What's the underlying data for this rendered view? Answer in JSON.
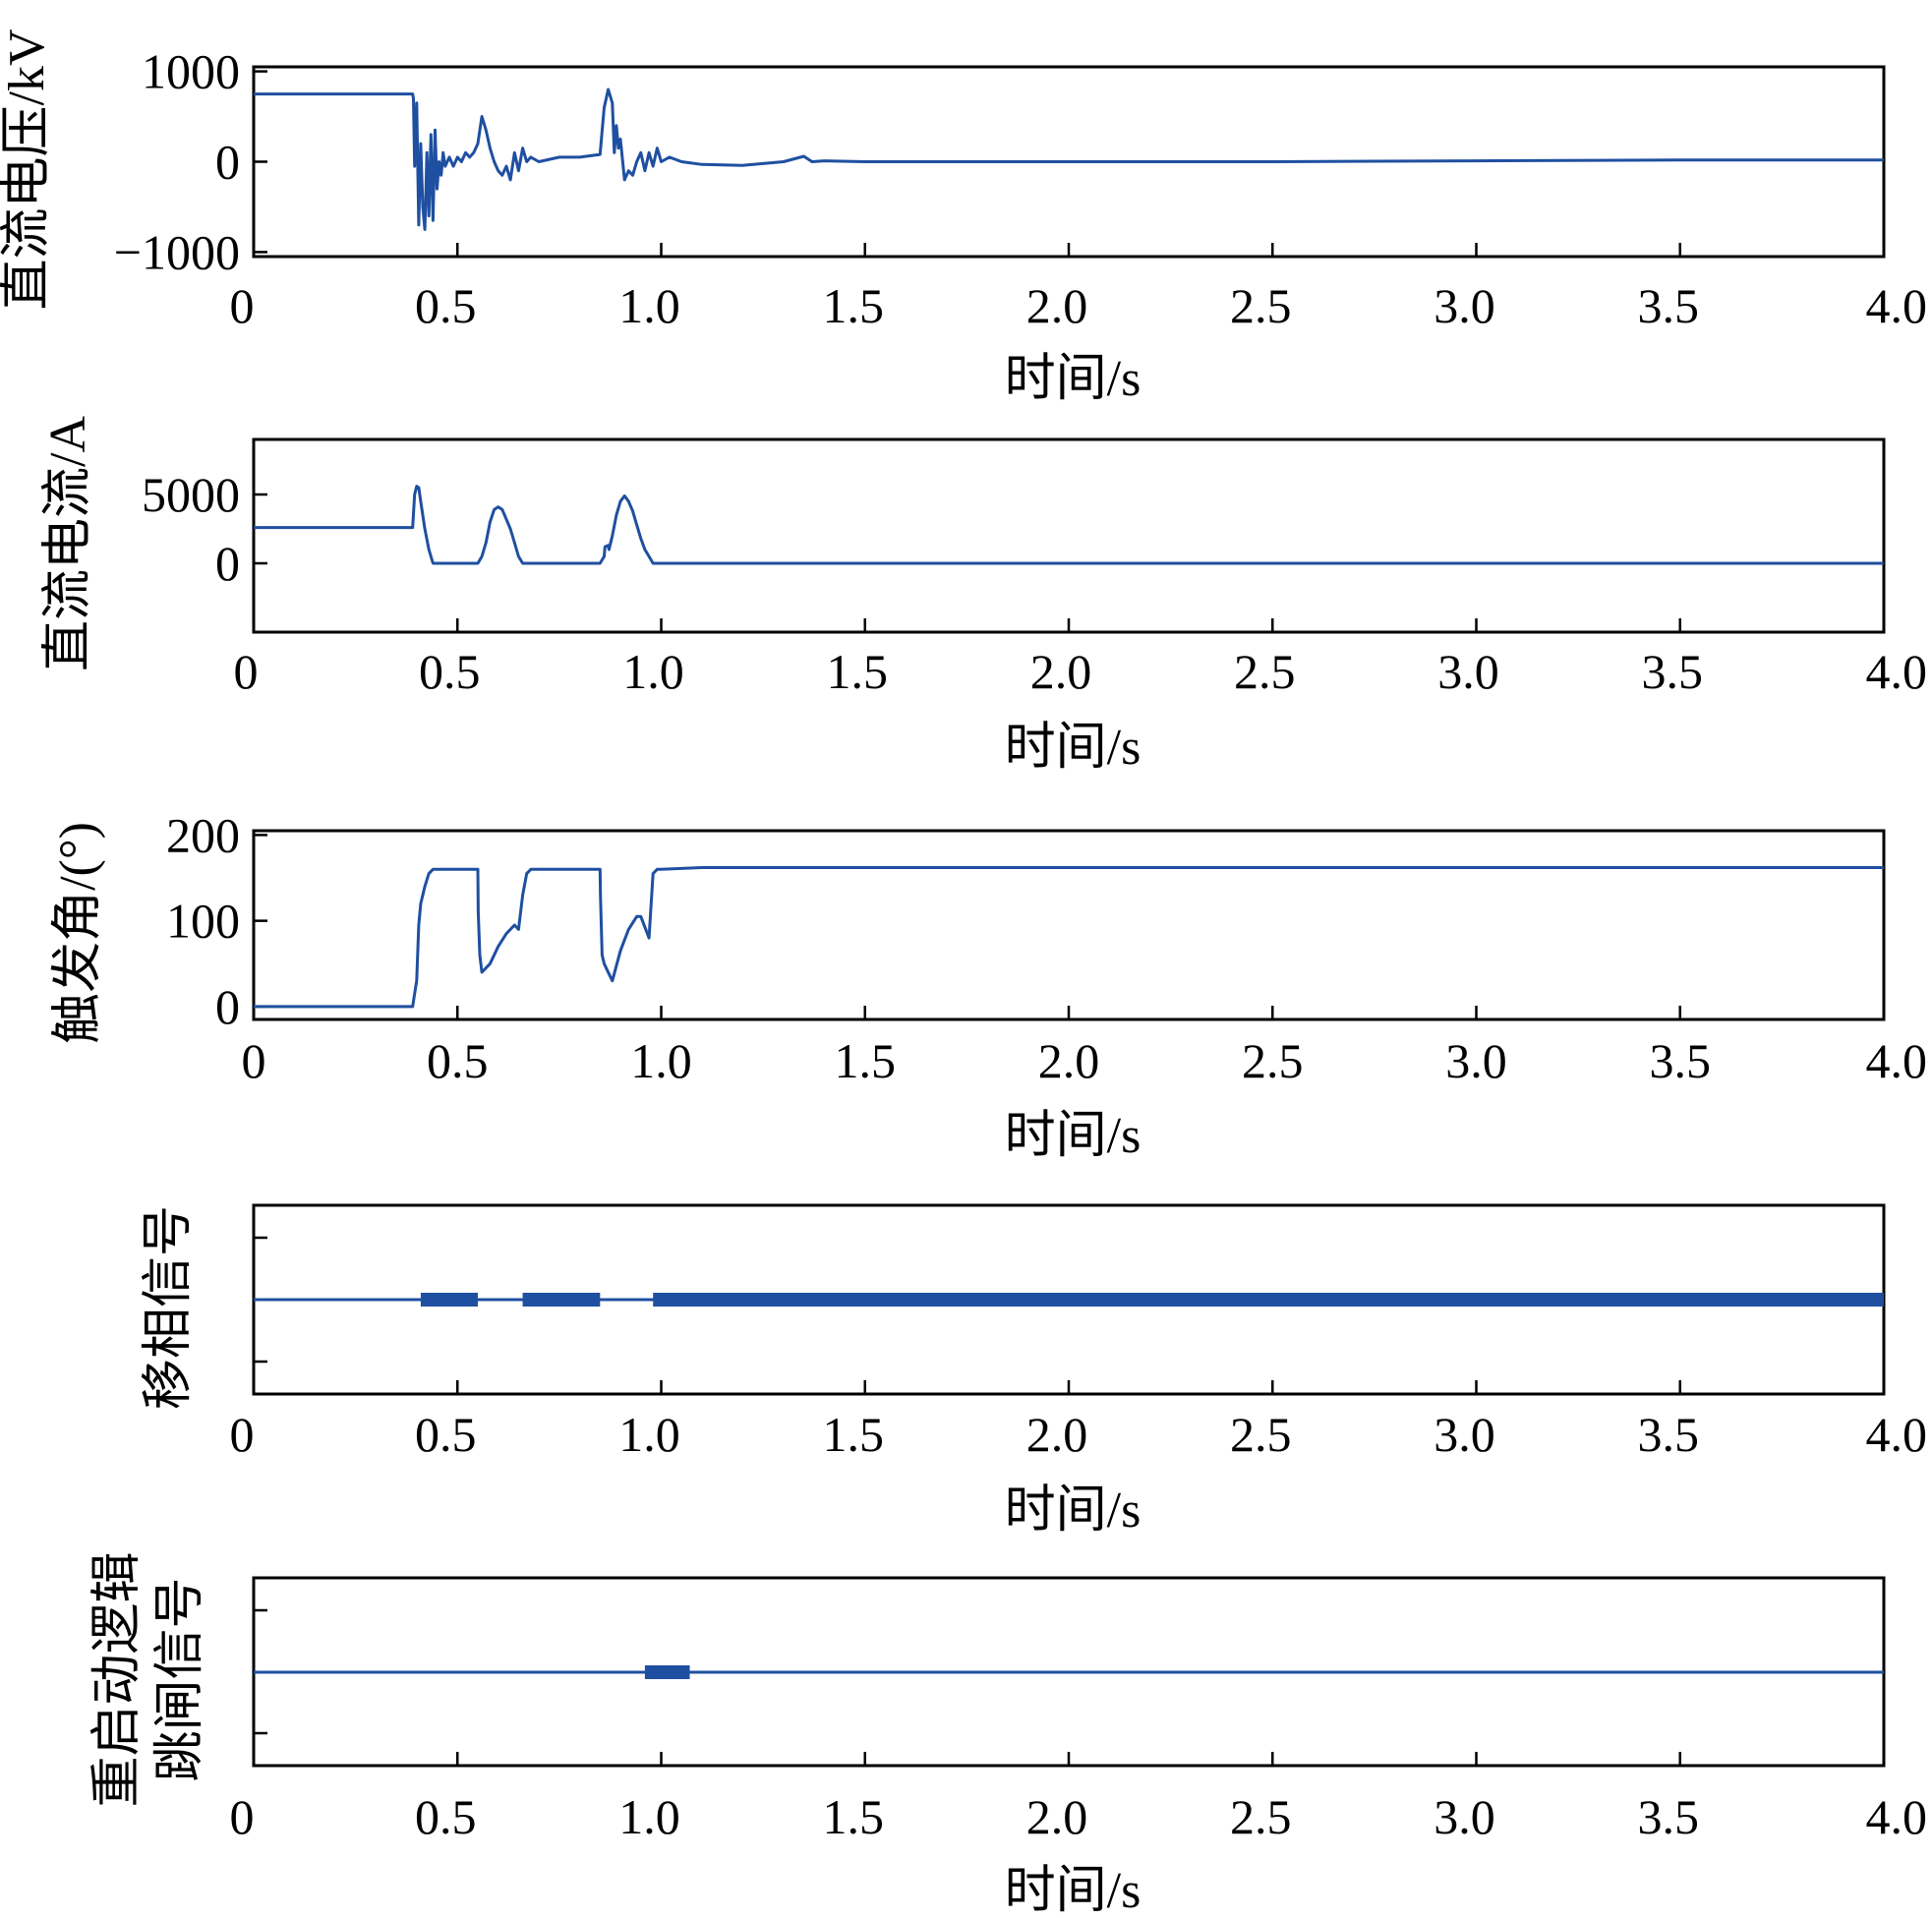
{
  "colors": {
    "series": "#1f4fa0",
    "axis": "#000000"
  },
  "chart_data": [
    {
      "type": "line",
      "id": "voltage",
      "ylabel": "直流电压/kV",
      "xlabel": "时间/s",
      "xlim": [
        0,
        4.0
      ],
      "ylim": [
        -1050,
        1050
      ],
      "xticks": [
        0,
        0.5,
        1.0,
        1.5,
        2.0,
        2.5,
        3.0,
        3.5,
        4.0
      ],
      "xticklabels": [
        "0",
        "0.5",
        "1.0",
        "1.5",
        "2.0",
        "2.5",
        "3.0",
        "3.5",
        "4.0"
      ],
      "yticks": [
        -1000,
        0,
        1000
      ],
      "yticklabels": [
        "−1000",
        "0",
        "1000"
      ],
      "series": [
        {
          "name": "直流电压",
          "x": [
            0,
            0.39,
            0.392,
            0.395,
            0.4,
            0.405,
            0.41,
            0.415,
            0.42,
            0.425,
            0.43,
            0.435,
            0.44,
            0.445,
            0.45,
            0.455,
            0.46,
            0.465,
            0.47,
            0.48,
            0.49,
            0.5,
            0.51,
            0.52,
            0.53,
            0.54,
            0.55,
            0.56,
            0.57,
            0.58,
            0.59,
            0.6,
            0.61,
            0.62,
            0.63,
            0.64,
            0.65,
            0.66,
            0.67,
            0.68,
            0.7,
            0.75,
            0.8,
            0.85,
            0.86,
            0.87,
            0.88,
            0.885,
            0.89,
            0.895,
            0.9,
            0.91,
            0.92,
            0.93,
            0.94,
            0.95,
            0.96,
            0.97,
            0.98,
            0.99,
            1.0,
            1.02,
            1.05,
            1.1,
            1.2,
            1.3,
            1.35,
            1.37,
            1.4,
            1.5,
            2.0,
            2.5,
            3.0,
            3.5,
            4.0
          ],
          "values": [
            750,
            750,
            700,
            -50,
            650,
            -700,
            200,
            -500,
            -750,
            100,
            -600,
            300,
            -650,
            350,
            -300,
            0,
            -150,
            100,
            -50,
            50,
            -50,
            50,
            0,
            100,
            50,
            100,
            200,
            500,
            350,
            150,
            0,
            -100,
            -150,
            -50,
            -200,
            100,
            -100,
            150,
            0,
            50,
            0,
            50,
            50,
            80,
            600,
            800,
            650,
            100,
            400,
            150,
            250,
            -200,
            -100,
            -150,
            0,
            100,
            -100,
            100,
            -50,
            150,
            0,
            50,
            0,
            -30,
            -40,
            0,
            60,
            0,
            10,
            0,
            0,
            0,
            10,
            20,
            20
          ]
        }
      ]
    },
    {
      "type": "line",
      "id": "current",
      "ylabel": "直流电流/A",
      "xlabel": "时间/s",
      "xlim": [
        0,
        4.0
      ],
      "ylim": [
        -5000,
        9000
      ],
      "xticks": [
        0,
        0.5,
        1.0,
        1.5,
        2.0,
        2.5,
        3.0,
        3.5,
        4.0
      ],
      "xticklabels": [
        "0",
        "0.5",
        "1.0",
        "1.5",
        "2.0",
        "2.5",
        "3.0",
        "3.5",
        "4.0"
      ],
      "yticks": [
        0,
        5000
      ],
      "yticklabels": [
        "0",
        "5000"
      ],
      "series": [
        {
          "name": "直流电流",
          "x": [
            0,
            0.39,
            0.395,
            0.4,
            0.405,
            0.41,
            0.42,
            0.43,
            0.44,
            0.45,
            0.5,
            0.55,
            0.56,
            0.57,
            0.58,
            0.59,
            0.6,
            0.61,
            0.62,
            0.63,
            0.64,
            0.65,
            0.66,
            0.7,
            0.8,
            0.85,
            0.86,
            0.862,
            0.87,
            0.872,
            0.88,
            0.89,
            0.9,
            0.91,
            0.92,
            0.93,
            0.94,
            0.95,
            0.96,
            0.97,
            0.98,
            1.0,
            2.0,
            3.0,
            4.0
          ],
          "values": [
            2600,
            2600,
            5000,
            5600,
            5500,
            4500,
            2500,
            1000,
            0,
            0,
            0,
            0,
            500,
            1500,
            3000,
            3900,
            4100,
            3900,
            3200,
            2500,
            1500,
            500,
            0,
            0,
            0,
            0,
            500,
            1200,
            1300,
            1000,
            2000,
            3500,
            4500,
            4900,
            4500,
            3800,
            2800,
            1800,
            1000,
            500,
            0,
            0,
            0,
            0,
            0
          ]
        }
      ]
    },
    {
      "type": "line",
      "id": "firing-angle",
      "ylabel": "触发角/(°)",
      "xlabel": "时间/s",
      "xlim": [
        0,
        4.0
      ],
      "ylim": [
        -15,
        205
      ],
      "xticks": [
        0,
        0.5,
        1.0,
        1.5,
        2.0,
        2.5,
        3.0,
        3.5,
        4.0
      ],
      "xticklabels": [
        "0",
        "0.5",
        "1.0",
        "1.5",
        "2.0",
        "2.5",
        "3.0",
        "3.5",
        "4.0"
      ],
      "yticks": [
        0,
        100,
        200
      ],
      "yticklabels": [
        "0",
        "100",
        "200"
      ],
      "series": [
        {
          "name": "触发角",
          "x": [
            0,
            0.39,
            0.395,
            0.4,
            0.405,
            0.41,
            0.415,
            0.42,
            0.43,
            0.44,
            0.45,
            0.55,
            0.551,
            0.555,
            0.56,
            0.58,
            0.6,
            0.62,
            0.64,
            0.65,
            0.66,
            0.67,
            0.68,
            0.7,
            0.85,
            0.851,
            0.855,
            0.86,
            0.87,
            0.88,
            0.9,
            0.92,
            0.94,
            0.95,
            0.97,
            0.98,
            0.99,
            1.0,
            1.1,
            2.0,
            3.0,
            4.0
          ],
          "values": [
            0,
            0,
            15,
            30,
            95,
            120,
            130,
            140,
            155,
            160,
            160,
            160,
            110,
            60,
            40,
            50,
            70,
            85,
            95,
            90,
            130,
            155,
            160,
            160,
            160,
            130,
            60,
            50,
            40,
            30,
            65,
            90,
            105,
            105,
            80,
            155,
            160,
            160,
            162,
            162,
            162,
            162
          ]
        }
      ]
    },
    {
      "type": "line",
      "id": "phase-shift-signal",
      "ylabel": "移相信号",
      "xlabel": "时间/s",
      "xlim": [
        0,
        4.0
      ],
      "xticks": [
        0,
        0.5,
        1.0,
        1.5,
        2.0,
        2.5,
        3.0,
        3.5,
        4.0
      ],
      "xticklabels": [
        "0",
        "0.5",
        "1.0",
        "1.5",
        "2.0",
        "2.5",
        "3.0",
        "3.5",
        "4.0"
      ],
      "active_intervals": [
        [
          0.41,
          0.55
        ],
        [
          0.66,
          0.85
        ],
        [
          0.98,
          4.0
        ]
      ]
    },
    {
      "type": "line",
      "id": "restart-logic-trip-signal",
      "ylabel": [
        "重启动逻辑",
        "跳闸信号"
      ],
      "xlabel": "时间/s",
      "xlim": [
        0,
        4.0
      ],
      "xticks": [
        0,
        0.5,
        1.0,
        1.5,
        2.0,
        2.5,
        3.0,
        3.5,
        4.0
      ],
      "xticklabels": [
        "0",
        "0.5",
        "1.0",
        "1.5",
        "2.0",
        "2.5",
        "3.0",
        "3.5",
        "4.0"
      ],
      "active_intervals": [
        [
          0.96,
          1.07
        ]
      ]
    }
  ]
}
